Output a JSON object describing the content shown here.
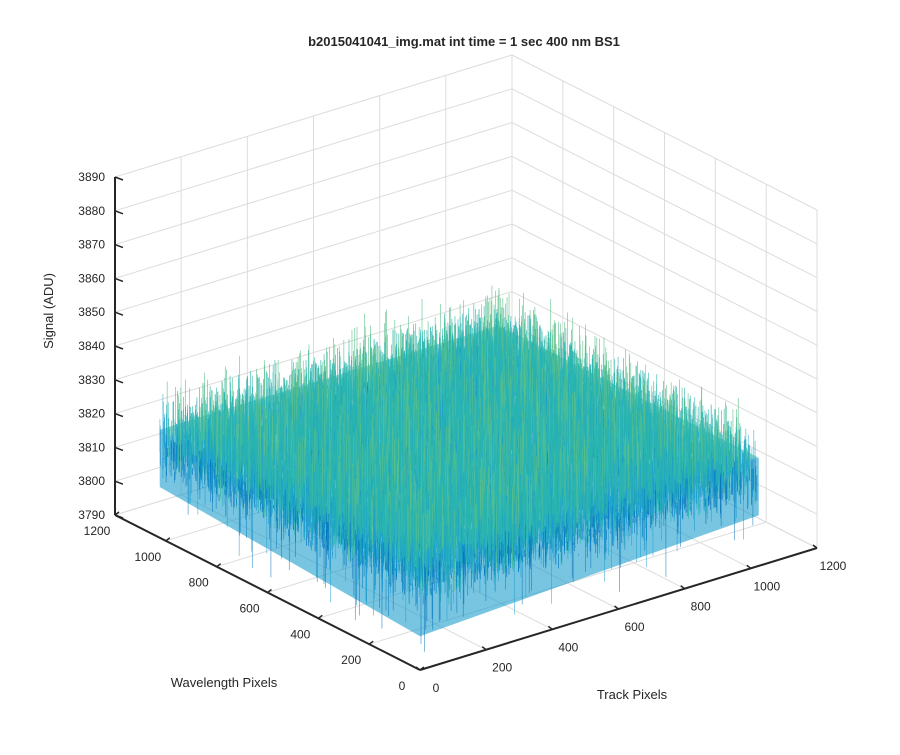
{
  "chart_data": {
    "type": "surface",
    "title": "b2015041041_img.mat int time = 1 sec  400 nm BS1",
    "xlabel": "Track Pixels",
    "ylabel": "Wavelength Pixels",
    "zlabel": "Signal (ADU)",
    "xlim": [
      0,
      1200
    ],
    "ylim": [
      0,
      1200
    ],
    "zlim": [
      3790,
      3890
    ],
    "xticks": [
      0,
      200,
      400,
      600,
      800,
      1000,
      1200
    ],
    "yticks": [
      0,
      200,
      400,
      600,
      800,
      1000,
      1200
    ],
    "zticks": [
      3790,
      3800,
      3810,
      3820,
      3830,
      3840,
      3850,
      3860,
      3870,
      3880,
      3890
    ],
    "grid": true,
    "data_extent": {
      "x": [
        0,
        1024
      ],
      "y": [
        0,
        1024
      ]
    },
    "signal_mean": 3822,
    "signal_noise_range": [
      3795,
      3870
    ],
    "colormap": [
      "#0072bd",
      "#1a9fd0",
      "#2bb5b0",
      "#5cc08a",
      "#a8c86a",
      "#e0cf4e"
    ]
  }
}
